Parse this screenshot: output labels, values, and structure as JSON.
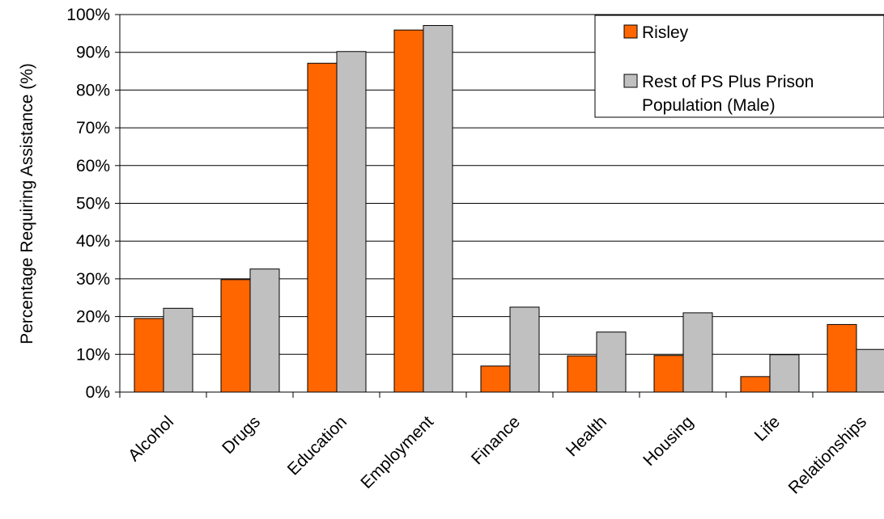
{
  "chart_data": {
    "type": "bar",
    "title": "",
    "xlabel": "",
    "ylabel": "Percentage Requiring Assistance (%)",
    "ylim": [
      0,
      100
    ],
    "yticks": [
      "0%",
      "10%",
      "20%",
      "30%",
      "40%",
      "50%",
      "60%",
      "70%",
      "80%",
      "90%",
      "100%"
    ],
    "categories": [
      "Alcohol",
      "Drugs",
      "Education",
      "Employment",
      "Finance",
      "Health",
      "Housing",
      "Life",
      "Relationships"
    ],
    "series": [
      {
        "name": "Risley",
        "color": "#ff6600",
        "values": [
          19.5,
          29.8,
          87.1,
          95.9,
          6.9,
          9.6,
          9.7,
          4.1,
          17.9
        ]
      },
      {
        "name": "Rest of PS Plus Prison Population (Male)",
        "legend_lines": [
          "Rest of PS Plus Prison",
          "Population (Male)"
        ],
        "color": "#c0c0c0",
        "values": [
          22.2,
          32.6,
          90.2,
          97.1,
          22.5,
          15.9,
          21.0,
          9.9,
          11.3
        ]
      }
    ],
    "legend_position": "top-right",
    "grid": true
  }
}
